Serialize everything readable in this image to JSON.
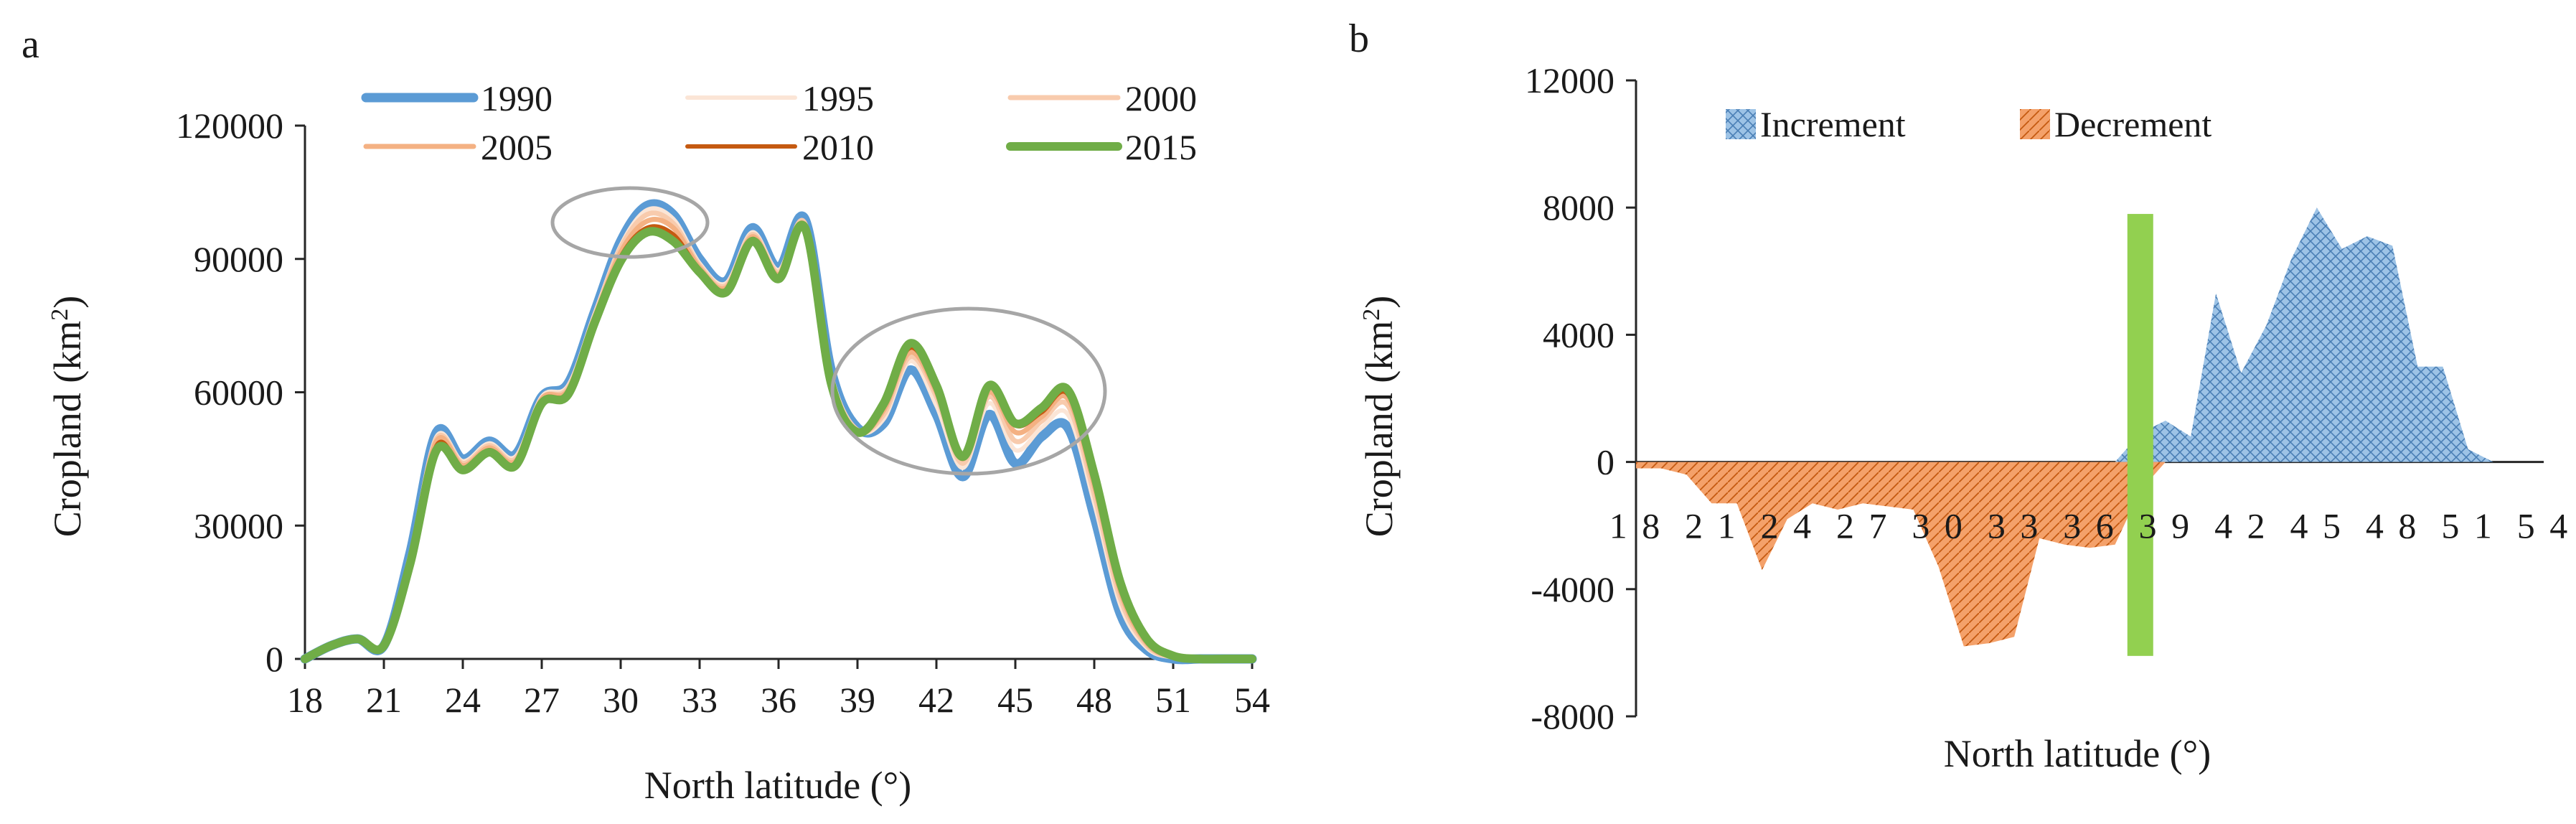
{
  "chart_data": [
    {
      "panel": "a",
      "type": "line",
      "xlabel": "North latitude (°)",
      "ylabel": "Cropland (km²)",
      "ylabel_main": "Cropland (km",
      "ylabel_sup": "2",
      "ylabel_close": ")",
      "xlim": [
        18,
        54
      ],
      "ylim": [
        0,
        120000
      ],
      "xticks": [
        "18",
        "21",
        "24",
        "27",
        "30",
        "33",
        "36",
        "39",
        "42",
        "45",
        "48",
        "51",
        "54"
      ],
      "yticks": [
        "0",
        "30000",
        "60000",
        "90000",
        "120000"
      ],
      "legend_position": "top",
      "colors": {
        "1990": "#5b9bd5",
        "1995": "#fbe5d6",
        "2000": "#f8cbad",
        "2005": "#f4b183",
        "2010": "#c55a11",
        "2015": "#70ad47",
        "ellipse": "#a6a6a6",
        "axis": "#262626"
      },
      "x": [
        18,
        19,
        20,
        21,
        22,
        23,
        24,
        25,
        26,
        27,
        28,
        29,
        30,
        31,
        32,
        33,
        34,
        35,
        36,
        37,
        38,
        39,
        40,
        41,
        42,
        43,
        44,
        45,
        46,
        47,
        48,
        49,
        50,
        51,
        52,
        53,
        54
      ],
      "series": [
        {
          "name": "1990",
          "values": [
            0,
            3000,
            4500,
            3000,
            24000,
            51000,
            45000,
            49000,
            46000,
            59000,
            62000,
            78000,
            94000,
            102000,
            100000,
            90000,
            85000,
            97000,
            88000,
            99000,
            65000,
            52000,
            53000,
            65000,
            55000,
            41000,
            55000,
            44000,
            50000,
            52000,
            32000,
            10000,
            2000,
            0,
            0,
            0,
            0
          ]
        },
        {
          "name": "1995",
          "values": [
            0,
            3000,
            4500,
            3000,
            23500,
            50000,
            44500,
            48500,
            45500,
            59000,
            61500,
            77500,
            93000,
            101000,
            99000,
            89000,
            84500,
            96000,
            87500,
            98000,
            64000,
            51500,
            54000,
            67000,
            57000,
            43000,
            57500,
            47000,
            52000,
            55000,
            35000,
            12000,
            2500,
            300,
            0,
            0,
            0
          ]
        },
        {
          "name": "2000",
          "values": [
            0,
            3000,
            4500,
            3000,
            23000,
            49500,
            44000,
            48000,
            45000,
            58500,
            61000,
            77000,
            92500,
            100000,
            98000,
            88500,
            84000,
            95500,
            87000,
            98000,
            63500,
            51500,
            55000,
            68000,
            59000,
            44000,
            59000,
            49000,
            53500,
            57000,
            37000,
            13500,
            3000,
            400,
            0,
            0,
            0
          ]
        },
        {
          "name": "2005",
          "values": [
            0,
            3000,
            4500,
            3000,
            22500,
            49000,
            43500,
            47500,
            44500,
            58500,
            60500,
            76500,
            91500,
            98500,
            97000,
            88000,
            83500,
            95000,
            86500,
            97500,
            63000,
            51000,
            56000,
            69000,
            60000,
            45000,
            60000,
            51000,
            54500,
            58500,
            39000,
            15000,
            3500,
            500,
            0,
            0,
            0
          ]
        },
        {
          "name": "2010",
          "values": [
            0,
            3000,
            4500,
            3000,
            22000,
            48000,
            43000,
            47000,
            44000,
            58000,
            60000,
            76000,
            90500,
            97000,
            95500,
            87500,
            83000,
            94500,
            86000,
            97000,
            62500,
            51000,
            57000,
            70000,
            61000,
            46000,
            61000,
            52500,
            55500,
            59500,
            40500,
            16000,
            4000,
            600,
            0,
            0,
            0
          ]
        },
        {
          "name": "2015",
          "values": [
            0,
            3000,
            4500,
            3000,
            21500,
            47000,
            42500,
            46500,
            43500,
            57500,
            59500,
            75500,
            89500,
            96000,
            94000,
            87000,
            82500,
            94000,
            85500,
            97000,
            62000,
            51000,
            57500,
            71000,
            61500,
            45500,
            61500,
            53000,
            56500,
            60500,
            41500,
            17000,
            4500,
            700,
            0,
            0,
            0
          ]
        }
      ],
      "annotations": [
        "grey ellipse around peak near 31°N",
        "grey ellipse around 40–48°N"
      ]
    },
    {
      "panel": "b",
      "type": "area",
      "xlabel": "North latitude (°)",
      "ylabel": "Cropland (km²)",
      "ylabel_main": "Cropland (km",
      "ylabel_sup": "2",
      "ylabel_close": ")",
      "xlim": [
        18,
        54
      ],
      "ylim": [
        -8000,
        12000
      ],
      "xticks": [
        "1 8",
        "2 1",
        "2 4",
        "2 7",
        "3 0",
        "3 3",
        "3 6",
        "3 9",
        "4 2",
        "4 5",
        "4 8",
        "5 1",
        "5 4"
      ],
      "yticks": [
        "-8000",
        "-4000",
        "0",
        "4000",
        "8000",
        "12000"
      ],
      "legend_position": "top",
      "colors": {
        "increment": "#9dc3e6",
        "increment_hatch": "#4a7fb5",
        "decrement": "#f4a16a",
        "decrement_hatch": "#c55a11",
        "marker": "#92d050",
        "axis": "#262626"
      },
      "x": [
        18,
        19,
        20,
        21,
        22,
        23,
        24,
        25,
        26,
        27,
        28,
        29,
        30,
        31,
        32,
        33,
        34,
        35,
        36,
        37,
        38,
        39,
        40,
        41,
        42,
        43,
        44,
        45,
        46,
        47,
        48,
        49,
        50,
        51,
        52,
        53,
        54
      ],
      "series": [
        {
          "name": "Increment",
          "values": [
            0,
            0,
            0,
            0,
            0,
            0,
            0,
            0,
            0,
            0,
            0,
            0,
            0,
            0,
            0,
            0,
            0,
            0,
            0,
            0,
            900,
            1300,
            800,
            5300,
            2800,
            4300,
            6400,
            8000,
            6700,
            7100,
            6800,
            3000,
            3000,
            400,
            0,
            0,
            0
          ]
        },
        {
          "name": "Decrement",
          "values": [
            -200,
            -200,
            -400,
            -1300,
            -1300,
            -3400,
            -1800,
            -1300,
            -1500,
            -1300,
            -1400,
            -1500,
            -3300,
            -5800,
            -5700,
            -5500,
            -2400,
            -2600,
            -2700,
            -2600,
            -900,
            0,
            0,
            0,
            0,
            0,
            0,
            0,
            0,
            0,
            0,
            0,
            0,
            0,
            0,
            0,
            0
          ]
        }
      ],
      "marker_latitude": 38,
      "marker_range": [
        -6100,
        7800
      ]
    }
  ],
  "panel_a": {
    "letter": "a",
    "legend": [
      "1990",
      "1995",
      "2000",
      "2005",
      "2010",
      "2015"
    ]
  },
  "panel_b": {
    "letter": "b",
    "legend": [
      "Increment",
      "Decrement"
    ]
  }
}
